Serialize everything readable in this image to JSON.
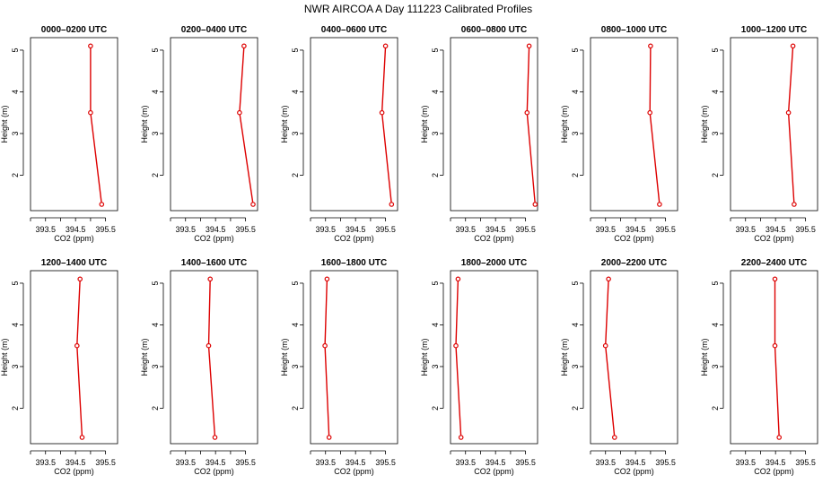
{
  "figure": {
    "title": "NWR AIRCOA A  Day 111223  Calibrated Profiles",
    "line_color": "#dd0000",
    "axis_color": "#000000"
  },
  "chart_data": [
    {
      "type": "line",
      "title": "0000–0200 UTC",
      "xlabel": "CO2 (ppm)",
      "ylabel": "Height (m)",
      "xlim": [
        393.0,
        395.9
      ],
      "ylim": [
        1.15,
        5.3
      ],
      "xticks": [
        393.5,
        394.5,
        395.5
      ],
      "xtick_labels": [
        "393.5",
        "394.5",
        "395.5"
      ],
      "x_minor_ticks": [
        393.0,
        394.0,
        395.0
      ],
      "yticks": [
        2,
        3,
        4,
        5
      ],
      "ytick_labels": [
        "2",
        "3",
        "4",
        "5"
      ],
      "series": [
        {
          "x": [
            395.37,
            395.0,
            395.0
          ],
          "y": [
            1.3,
            3.5,
            5.1
          ]
        }
      ]
    },
    {
      "type": "line",
      "title": "0200–0400 UTC",
      "xlabel": "CO2 (ppm)",
      "ylabel": "Height (m)",
      "xlim": [
        393.0,
        395.9
      ],
      "ylim": [
        1.15,
        5.3
      ],
      "xticks": [
        393.5,
        394.5,
        395.5
      ],
      "xtick_labels": [
        "393.5",
        "394.5",
        "395.5"
      ],
      "x_minor_ticks": [
        393.0,
        394.0,
        395.0
      ],
      "yticks": [
        2,
        3,
        4,
        5
      ],
      "ytick_labels": [
        "2",
        "3",
        "4",
        "5"
      ],
      "series": [
        {
          "x": [
            395.75,
            395.3,
            395.45
          ],
          "y": [
            1.3,
            3.5,
            5.1
          ]
        }
      ]
    },
    {
      "type": "line",
      "title": "0400–0600 UTC",
      "xlabel": "CO2 (ppm)",
      "ylabel": "Height (m)",
      "xlim": [
        393.0,
        395.9
      ],
      "ylim": [
        1.15,
        5.3
      ],
      "xticks": [
        393.5,
        394.5,
        395.5
      ],
      "xtick_labels": [
        "393.5",
        "394.5",
        "395.5"
      ],
      "x_minor_ticks": [
        393.0,
        394.0,
        395.0
      ],
      "yticks": [
        2,
        3,
        4,
        5
      ],
      "ytick_labels": [
        "2",
        "3",
        "4",
        "5"
      ],
      "series": [
        {
          "x": [
            395.7,
            395.38,
            395.5
          ],
          "y": [
            1.3,
            3.5,
            5.1
          ]
        }
      ]
    },
    {
      "type": "line",
      "title": "0600–0800 UTC",
      "xlabel": "CO2 (ppm)",
      "ylabel": "Height (m)",
      "xlim": [
        393.0,
        395.9
      ],
      "ylim": [
        1.15,
        5.3
      ],
      "xticks": [
        393.5,
        394.5,
        395.5
      ],
      "xtick_labels": [
        "393.5",
        "394.5",
        "395.5"
      ],
      "x_minor_ticks": [
        393.0,
        394.0,
        395.0
      ],
      "yticks": [
        2,
        3,
        4,
        5
      ],
      "ytick_labels": [
        "2",
        "3",
        "4",
        "5"
      ],
      "series": [
        {
          "x": [
            395.82,
            395.55,
            395.62
          ],
          "y": [
            1.3,
            3.5,
            5.1
          ]
        }
      ]
    },
    {
      "type": "line",
      "title": "0800–1000 UTC",
      "xlabel": "CO2 (ppm)",
      "ylabel": "Height (m)",
      "xlim": [
        393.0,
        395.9
      ],
      "ylim": [
        1.15,
        5.3
      ],
      "xticks": [
        393.5,
        394.5,
        395.5
      ],
      "xtick_labels": [
        "393.5",
        "394.5",
        "395.5"
      ],
      "x_minor_ticks": [
        393.0,
        394.0,
        395.0
      ],
      "yticks": [
        2,
        3,
        4,
        5
      ],
      "ytick_labels": [
        "2",
        "3",
        "4",
        "5"
      ],
      "series": [
        {
          "x": [
            395.3,
            394.98,
            395.0
          ],
          "y": [
            1.3,
            3.5,
            5.1
          ]
        }
      ]
    },
    {
      "type": "line",
      "title": "1000–1200 UTC",
      "xlabel": "CO2 (ppm)",
      "ylabel": "Height (m)",
      "xlim": [
        393.0,
        395.9
      ],
      "ylim": [
        1.15,
        5.3
      ],
      "xticks": [
        393.5,
        394.5,
        395.5
      ],
      "xtick_labels": [
        "393.5",
        "394.5",
        "395.5"
      ],
      "x_minor_ticks": [
        393.0,
        394.0,
        395.0
      ],
      "yticks": [
        2,
        3,
        4,
        5
      ],
      "ytick_labels": [
        "2",
        "3",
        "4",
        "5"
      ],
      "series": [
        {
          "x": [
            395.12,
            394.93,
            395.08
          ],
          "y": [
            1.3,
            3.5,
            5.1
          ]
        }
      ]
    },
    {
      "type": "line",
      "title": "1200–1400 UTC",
      "xlabel": "CO2 (ppm)",
      "ylabel": "Height (m)",
      "xlim": [
        393.0,
        395.9
      ],
      "ylim": [
        1.15,
        5.3
      ],
      "xticks": [
        393.5,
        394.5,
        395.5
      ],
      "xtick_labels": [
        "393.5",
        "394.5",
        "395.5"
      ],
      "x_minor_ticks": [
        393.0,
        394.0,
        395.0
      ],
      "yticks": [
        2,
        3,
        4,
        5
      ],
      "ytick_labels": [
        "2",
        "3",
        "4",
        "5"
      ],
      "series": [
        {
          "x": [
            394.72,
            394.55,
            394.65
          ],
          "y": [
            1.3,
            3.5,
            5.1
          ]
        }
      ]
    },
    {
      "type": "line",
      "title": "1400–1600 UTC",
      "xlabel": "CO2 (ppm)",
      "ylabel": "Height (m)",
      "xlim": [
        393.0,
        395.9
      ],
      "ylim": [
        1.15,
        5.3
      ],
      "xticks": [
        393.5,
        394.5,
        395.5
      ],
      "xtick_labels": [
        "393.5",
        "394.5",
        "395.5"
      ],
      "x_minor_ticks": [
        393.0,
        394.0,
        395.0
      ],
      "yticks": [
        2,
        3,
        4,
        5
      ],
      "ytick_labels": [
        "2",
        "3",
        "4",
        "5"
      ],
      "series": [
        {
          "x": [
            394.48,
            394.27,
            394.32
          ],
          "y": [
            1.3,
            3.5,
            5.1
          ]
        }
      ]
    },
    {
      "type": "line",
      "title": "1600–1800 UTC",
      "xlabel": "CO2 (ppm)",
      "ylabel": "Height (m)",
      "xlim": [
        393.0,
        395.9
      ],
      "ylim": [
        1.15,
        5.3
      ],
      "xticks": [
        393.5,
        394.5,
        395.5
      ],
      "xtick_labels": [
        "393.5",
        "394.5",
        "395.5"
      ],
      "x_minor_ticks": [
        393.0,
        394.0,
        395.0
      ],
      "yticks": [
        2,
        3,
        4,
        5
      ],
      "ytick_labels": [
        "2",
        "3",
        "4",
        "5"
      ],
      "series": [
        {
          "x": [
            393.62,
            393.48,
            393.55
          ],
          "y": [
            1.3,
            3.5,
            5.1
          ]
        }
      ]
    },
    {
      "type": "line",
      "title": "1800–2000 UTC",
      "xlabel": "CO2 (ppm)",
      "ylabel": "Height (m)",
      "xlim": [
        393.0,
        395.9
      ],
      "ylim": [
        1.15,
        5.3
      ],
      "xticks": [
        393.5,
        394.5,
        395.5
      ],
      "xtick_labels": [
        "393.5",
        "394.5",
        "395.5"
      ],
      "x_minor_ticks": [
        393.0,
        394.0,
        395.0
      ],
      "yticks": [
        2,
        3,
        4,
        5
      ],
      "ytick_labels": [
        "2",
        "3",
        "4",
        "5"
      ],
      "series": [
        {
          "x": [
            393.35,
            393.18,
            393.25
          ],
          "y": [
            1.3,
            3.5,
            5.1
          ]
        }
      ]
    },
    {
      "type": "line",
      "title": "2000–2200 UTC",
      "xlabel": "CO2 (ppm)",
      "ylabel": "Height (m)",
      "xlim": [
        393.0,
        395.9
      ],
      "ylim": [
        1.15,
        5.3
      ],
      "xticks": [
        393.5,
        394.5,
        395.5
      ],
      "xtick_labels": [
        "393.5",
        "394.5",
        "395.5"
      ],
      "x_minor_ticks": [
        393.0,
        394.0,
        395.0
      ],
      "yticks": [
        2,
        3,
        4,
        5
      ],
      "ytick_labels": [
        "2",
        "3",
        "4",
        "5"
      ],
      "series": [
        {
          "x": [
            393.8,
            393.5,
            393.6
          ],
          "y": [
            1.3,
            3.5,
            5.1
          ]
        }
      ]
    },
    {
      "type": "line",
      "title": "2200–2400 UTC",
      "xlabel": "CO2 (ppm)",
      "ylabel": "Height (m)",
      "xlim": [
        393.0,
        395.9
      ],
      "ylim": [
        1.15,
        5.3
      ],
      "xticks": [
        393.5,
        394.5,
        395.5
      ],
      "xtick_labels": [
        "393.5",
        "394.5",
        "395.5"
      ],
      "x_minor_ticks": [
        393.0,
        394.0,
        395.0
      ],
      "yticks": [
        2,
        3,
        4,
        5
      ],
      "ytick_labels": [
        "2",
        "3",
        "4",
        "5"
      ],
      "series": [
        {
          "x": [
            394.62,
            394.48,
            394.48
          ],
          "y": [
            1.3,
            3.5,
            5.1
          ]
        }
      ]
    }
  ]
}
